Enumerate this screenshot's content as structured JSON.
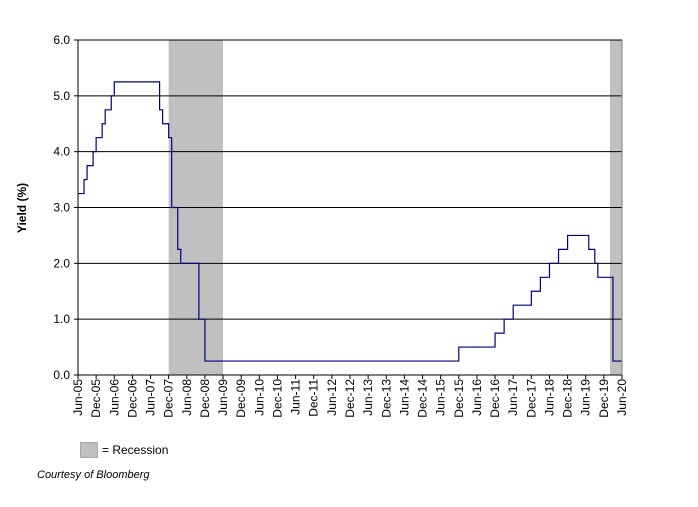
{
  "chart_data": {
    "type": "line",
    "ylabel": "Yield (%)",
    "ylim": [
      0,
      6
    ],
    "y_ticks": [
      "0.0",
      "1.0",
      "2.0",
      "3.0",
      "4.0",
      "5.0",
      "6.0"
    ],
    "x_range": [
      "Jun-05",
      "Jun-20"
    ],
    "x_ticks": [
      "Jun-05",
      "Dec-05",
      "Jun-06",
      "Dec-06",
      "Jun-07",
      "Dec-07",
      "Jun-08",
      "Dec-08",
      "Jun-09",
      "Dec-09",
      "Jun-10",
      "Dec-10",
      "Jun-11",
      "Dec-11",
      "Jun-12",
      "Dec-12",
      "Jun-13",
      "Dec-13",
      "Jun-14",
      "Dec-14",
      "Jun-15",
      "Dec-15",
      "Jun-16",
      "Dec-16",
      "Jun-17",
      "Dec-17",
      "Jun-18",
      "Dec-18",
      "Jun-19",
      "Dec-19",
      "Jun-20"
    ],
    "grid": "horizontal",
    "series": [
      {
        "color": "#000080",
        "step": true,
        "points": [
          [
            "Jun-05",
            3.25
          ],
          [
            "Aug-05",
            3.5
          ],
          [
            "Sep-05",
            3.75
          ],
          [
            "Nov-05",
            4.0
          ],
          [
            "Dec-05",
            4.25
          ],
          [
            "Feb-06",
            4.5
          ],
          [
            "Mar-06",
            4.75
          ],
          [
            "May-06",
            5.0
          ],
          [
            "Jun-06",
            5.25
          ],
          [
            "Sep-07",
            4.75
          ],
          [
            "Oct-07",
            4.5
          ],
          [
            "Dec-07",
            4.25
          ],
          [
            "Jan-08",
            3.5
          ],
          [
            "Jan-08",
            3.0
          ],
          [
            "Mar-08",
            2.25
          ],
          [
            "Apr-08",
            2.0
          ],
          [
            "Oct-08",
            1.5
          ],
          [
            "Oct-08",
            1.0
          ],
          [
            "Dec-08",
            0.25
          ],
          [
            "Dec-15",
            0.5
          ],
          [
            "Dec-16",
            0.75
          ],
          [
            "Mar-17",
            1.0
          ],
          [
            "Jun-17",
            1.25
          ],
          [
            "Dec-17",
            1.5
          ],
          [
            "Mar-18",
            1.75
          ],
          [
            "Jun-18",
            2.0
          ],
          [
            "Sep-18",
            2.25
          ],
          [
            "Dec-18",
            2.5
          ],
          [
            "Jul-19",
            2.25
          ],
          [
            "Sep-19",
            2.0
          ],
          [
            "Oct-19",
            1.75
          ],
          [
            "Mar-20",
            1.0
          ],
          [
            "Mar-20",
            0.25
          ],
          [
            "Jun-20",
            0.25
          ]
        ]
      }
    ],
    "recessions": [
      [
        "Dec-07",
        "Jun-09"
      ],
      [
        "Feb-20",
        "Jun-20"
      ]
    ],
    "legend": {
      "label": "= Recession",
      "swatch_color": "#c0c0c0"
    },
    "source_note": "Courtesy of Bloomberg"
  }
}
